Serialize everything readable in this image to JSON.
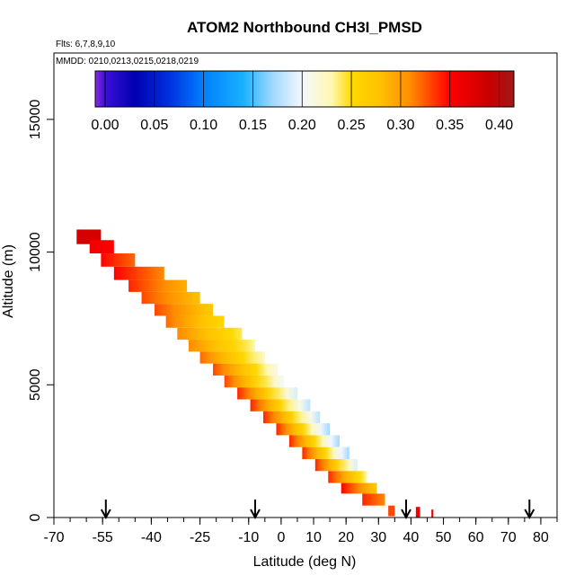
{
  "chart_data": {
    "type": "heatmap",
    "title": "ATOM2 Northbound CH3I_PMSD",
    "flights_label": "Flts: 6,7,8,9,10",
    "mmdd_label": "MMDD: 0210,0213,0215,0218,0219",
    "xlabel": "Latitude (deg N)",
    "ylabel": "Altitude (m)",
    "xlim": [
      -70,
      85
    ],
    "ylim": [
      0,
      17500
    ],
    "x_ticks": [
      {
        "value": -70,
        "label": "-70"
      },
      {
        "value": -55,
        "label": "-55"
      },
      {
        "value": -40,
        "label": "-40"
      },
      {
        "value": -25,
        "label": "-25"
      },
      {
        "value": -10,
        "label": "-10"
      },
      {
        "value": 0,
        "label": "0"
      },
      {
        "value": 10,
        "label": "10"
      },
      {
        "value": 20,
        "label": "20"
      },
      {
        "value": 30,
        "label": "30"
      },
      {
        "value": 40,
        "label": "40"
      },
      {
        "value": 50,
        "label": "50"
      },
      {
        "value": 60,
        "label": "60"
      },
      {
        "value": 70,
        "label": "70"
      },
      {
        "value": 80,
        "label": "80"
      }
    ],
    "y_ticks": [
      {
        "value": 0,
        "label": "0"
      },
      {
        "value": 5000,
        "label": "5000"
      },
      {
        "value": 10000,
        "label": "10000"
      },
      {
        "value": 15000,
        "label": "15000"
      }
    ],
    "colorbar": {
      "min": -0.01,
      "max": 0.415,
      "ticks": [
        {
          "value": 0.0,
          "label": "0.00"
        },
        {
          "value": 0.05,
          "label": "0.05"
        },
        {
          "value": 0.1,
          "label": "0.10"
        },
        {
          "value": 0.15,
          "label": "0.15"
        },
        {
          "value": 0.2,
          "label": "0.20"
        },
        {
          "value": 0.25,
          "label": "0.25"
        },
        {
          "value": 0.3,
          "label": "0.30"
        },
        {
          "value": 0.35,
          "label": "0.35"
        },
        {
          "value": 0.4,
          "label": "0.40"
        }
      ],
      "stops": [
        {
          "value": -0.01,
          "color": "#8a2be2"
        },
        {
          "value": 0.0,
          "color": "#3a10d8"
        },
        {
          "value": 0.03,
          "color": "#0000b0"
        },
        {
          "value": 0.065,
          "color": "#0030e0"
        },
        {
          "value": 0.1,
          "color": "#0080ff"
        },
        {
          "value": 0.14,
          "color": "#1ab0ff"
        },
        {
          "value": 0.17,
          "color": "#a0d8ff"
        },
        {
          "value": 0.2,
          "color": "#f4f8ff"
        },
        {
          "value": 0.23,
          "color": "#fff8b0"
        },
        {
          "value": 0.25,
          "color": "#ffd900"
        },
        {
          "value": 0.28,
          "color": "#ffc000"
        },
        {
          "value": 0.31,
          "color": "#ff8c00"
        },
        {
          "value": 0.35,
          "color": "#ff0000"
        },
        {
          "value": 0.39,
          "color": "#c80000"
        },
        {
          "value": 0.415,
          "color": "#a01818"
        }
      ]
    },
    "flight_markers_lat": [
      -54,
      -8,
      38.5,
      76.5
    ],
    "segments": [
      {
        "lat0": -63.0,
        "lat1": -55.5,
        "alt0": 10300,
        "alt1": 10850,
        "v0": 0.38,
        "v1": 0.38
      },
      {
        "lat0": -59.0,
        "lat1": -51.5,
        "alt0": 9950,
        "alt1": 10450,
        "v0": 0.36,
        "v1": 0.35
      },
      {
        "lat0": -55.5,
        "lat1": -45.0,
        "alt0": 9450,
        "alt1": 9950,
        "v0": 0.35,
        "v1": 0.32
      },
      {
        "lat0": -51.5,
        "lat1": -36.0,
        "alt0": 8950,
        "alt1": 9450,
        "v0": 0.35,
        "v1": 0.31
      },
      {
        "lat0": -47.0,
        "lat1": -29.0,
        "alt0": 8500,
        "alt1": 8950,
        "v0": 0.34,
        "v1": 0.29
      },
      {
        "lat0": -43.0,
        "lat1": -25.0,
        "alt0": 8050,
        "alt1": 8500,
        "v0": 0.33,
        "v1": 0.28
      },
      {
        "lat0": -39.0,
        "lat1": -21.0,
        "alt0": 7600,
        "alt1": 8050,
        "v0": 0.33,
        "v1": 0.27
      },
      {
        "lat0": -35.5,
        "lat1": -17.5,
        "alt0": 7150,
        "alt1": 7600,
        "v0": 0.32,
        "v1": 0.25
      },
      {
        "lat0": -32.0,
        "lat1": -12.0,
        "alt0": 6700,
        "alt1": 7150,
        "v0": 0.31,
        "v1": 0.24
      },
      {
        "lat0": -28.5,
        "lat1": -8.0,
        "alt0": 6250,
        "alt1": 6700,
        "v0": 0.31,
        "v1": 0.23
      },
      {
        "lat0": -25.0,
        "lat1": -5.0,
        "alt0": 5800,
        "alt1": 6250,
        "v0": 0.32,
        "v1": 0.22
      },
      {
        "lat0": -21.0,
        "lat1": -1.0,
        "alt0": 5350,
        "alt1": 5800,
        "v0": 0.33,
        "v1": 0.21
      },
      {
        "lat0": -17.5,
        "lat1": 1.0,
        "alt0": 4900,
        "alt1": 5350,
        "v0": 0.33,
        "v1": 0.2
      },
      {
        "lat0": -13.5,
        "lat1": 5.0,
        "alt0": 4450,
        "alt1": 4900,
        "v0": 0.34,
        "v1": 0.19
      },
      {
        "lat0": -9.5,
        "lat1": 9.0,
        "alt0": 4000,
        "alt1": 4450,
        "v0": 0.34,
        "v1": 0.18
      },
      {
        "lat0": -5.5,
        "lat1": 12.0,
        "alt0": 3550,
        "alt1": 4000,
        "v0": 0.34,
        "v1": 0.18
      },
      {
        "lat0": -1.5,
        "lat1": 15.0,
        "alt0": 3100,
        "alt1": 3550,
        "v0": 0.34,
        "v1": 0.17
      },
      {
        "lat0": 2.5,
        "lat1": 18.0,
        "alt0": 2650,
        "alt1": 3100,
        "v0": 0.34,
        "v1": 0.17
      },
      {
        "lat0": 6.5,
        "lat1": 21.0,
        "alt0": 2200,
        "alt1": 2650,
        "v0": 0.34,
        "v1": 0.17
      },
      {
        "lat0": 10.5,
        "lat1": 23.5,
        "alt0": 1750,
        "alt1": 2200,
        "v0": 0.34,
        "v1": 0.19
      },
      {
        "lat0": 14.5,
        "lat1": 26.5,
        "alt0": 1300,
        "alt1": 1750,
        "v0": 0.34,
        "v1": 0.23
      },
      {
        "lat0": 18.5,
        "lat1": 29.5,
        "alt0": 900,
        "alt1": 1300,
        "v0": 0.35,
        "v1": 0.27
      },
      {
        "lat0": 25.0,
        "lat1": 32.0,
        "alt0": 450,
        "alt1": 900,
        "v0": 0.34,
        "v1": 0.31
      },
      {
        "lat0": 33.0,
        "lat1": 35.0,
        "alt0": 50,
        "alt1": 450,
        "v0": 0.33,
        "v1": 0.33
      },
      {
        "lat0": 41.5,
        "lat1": 42.8,
        "alt0": 0,
        "alt1": 400,
        "v0": 0.36,
        "v1": 0.36
      },
      {
        "lat0": 46.3,
        "lat1": 46.9,
        "alt0": 0,
        "alt1": 300,
        "v0": 0.37,
        "v1": 0.37
      }
    ]
  }
}
